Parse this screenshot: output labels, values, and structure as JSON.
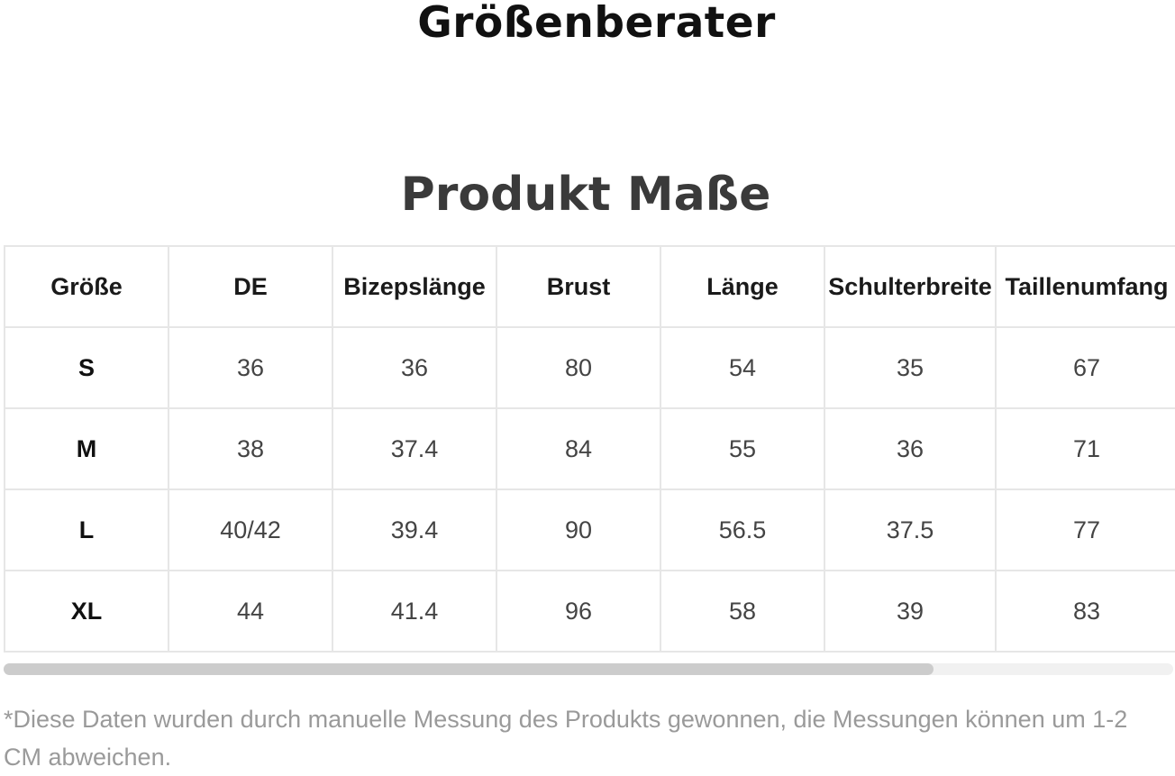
{
  "page": {
    "title": "Größenberater",
    "section_title": "Produkt Maße"
  },
  "table": {
    "headers": [
      "Größe",
      "DE",
      "Bizepslänge",
      "Brust",
      "Länge",
      "Schulterbreite",
      "Taillenumfang"
    ],
    "rows": [
      [
        "S",
        "36",
        "36",
        "80",
        "54",
        "35",
        "67"
      ],
      [
        "M",
        "38",
        "37.4",
        "84",
        "55",
        "36",
        "71"
      ],
      [
        "L",
        "40/42",
        "39.4",
        "90",
        "56.5",
        "37.5",
        "77"
      ],
      [
        "XL",
        "44",
        "41.4",
        "96",
        "58",
        "39",
        "83"
      ]
    ]
  },
  "scrollbar": {
    "visible_fraction": 0.795
  },
  "footnote": "*Diese Daten wurden durch manuelle Messung des Produkts gewonnen, die Messungen können um 1-2 CM abweichen."
}
